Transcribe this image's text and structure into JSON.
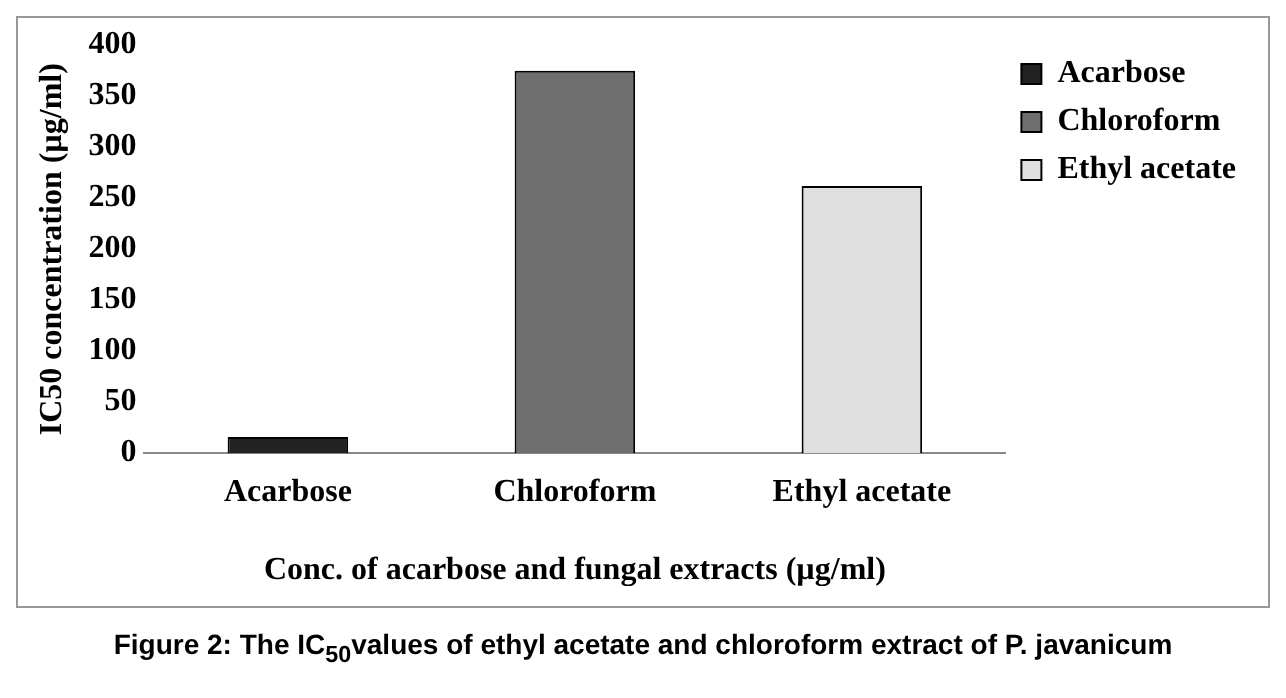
{
  "chart_data": {
    "type": "bar",
    "xlabel": "Conc. of acarbose and fungal extracts (µg/ml)",
    "ylabel": "IC50 concentration (µg/ml)",
    "categories": [
      "Acarbose",
      "Chloroform",
      "Ethyl acetate"
    ],
    "series": [
      {
        "name": "Acarbose",
        "color": "#222222",
        "values": [
          16,
          null,
          null
        ]
      },
      {
        "name": "Chloroform",
        "color": "#6e6e6e",
        "values": [
          null,
          375,
          null
        ]
      },
      {
        "name": "Ethyl acetate",
        "color": "#e0e0e0",
        "values": [
          null,
          null,
          262
        ]
      }
    ],
    "ylim": [
      0,
      400
    ],
    "yticks": [
      0,
      50,
      100,
      150,
      200,
      250,
      300,
      350,
      400
    ],
    "grid": false,
    "legend": "top right",
    "annotations": [
      "Figure 2: The IC$_{50}$values of ethyl acetate and chloroform extract of P. javanicum"
    ]
  }
}
